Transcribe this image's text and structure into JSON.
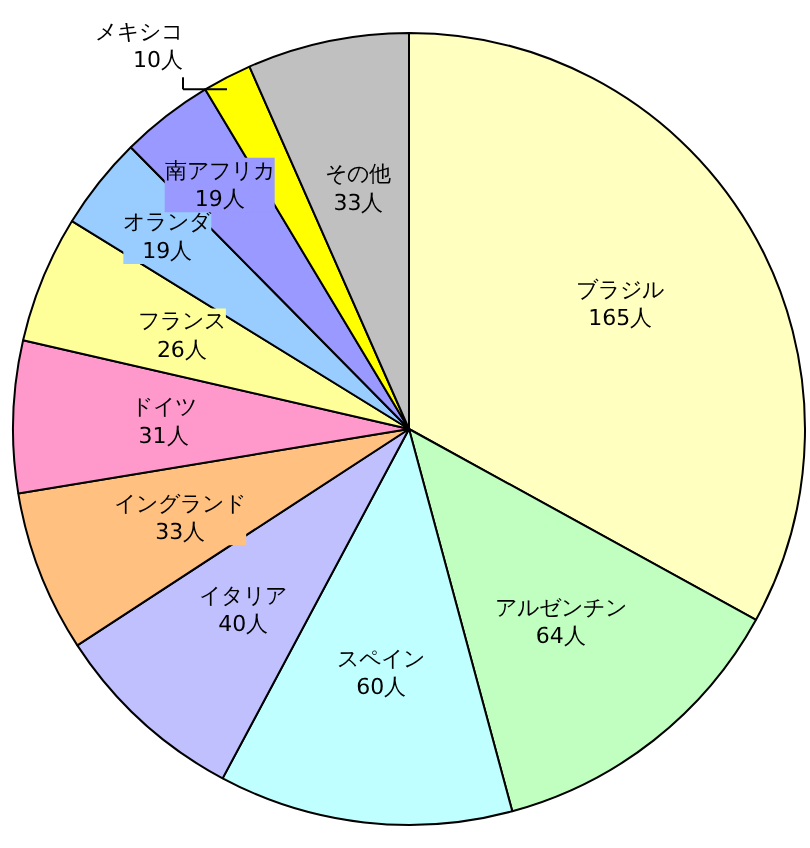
{
  "chart_data": {
    "type": "pie",
    "categories": [
      "ブラジル",
      "アルゼンチン",
      "スペイン",
      "イタリア",
      "イングランド",
      "ドイツ",
      "フランス",
      "オランダ",
      "南アフリカ",
      "メキシコ",
      "その他"
    ],
    "values": [
      165,
      64,
      60,
      40,
      33,
      31,
      26,
      19,
      19,
      10,
      33
    ],
    "value_labels": [
      "165人",
      "64人",
      "60人",
      "40人",
      "33人",
      "31人",
      "26人",
      "19人",
      "19人",
      "10人",
      "33人"
    ],
    "colors": [
      "#ffffc0",
      "#c0ffc0",
      "#c0ffff",
      "#c0c0ff",
      "#ffc080",
      "#ff99cc",
      "#ffff99",
      "#99ccff",
      "#9999ff",
      "#ffff00",
      "#c0c0c0"
    ]
  }
}
